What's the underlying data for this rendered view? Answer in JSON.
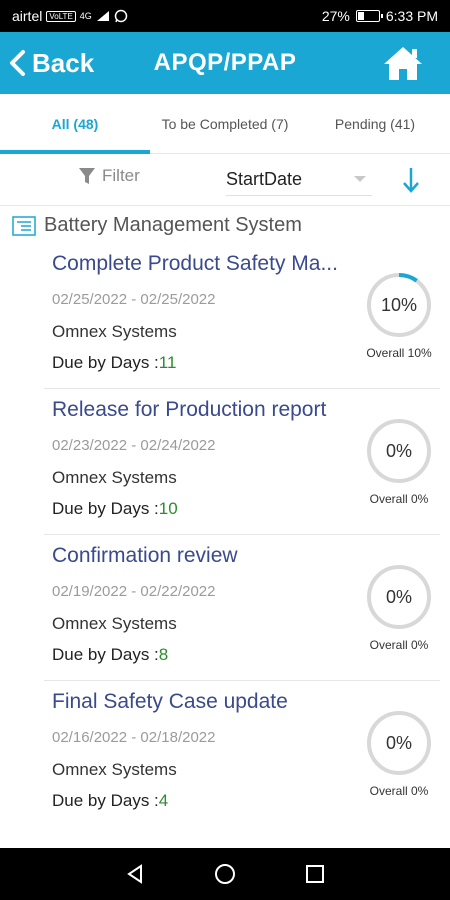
{
  "status_bar": {
    "carrier": "airtel",
    "network_tag": "VoLTE",
    "signal": "4G",
    "battery_text": "27%",
    "time": "6:33 PM"
  },
  "header": {
    "back_label": "Back",
    "title": "APQP/PPAP",
    "home_icon": "home-icon",
    "color": "#1aa7d3"
  },
  "tabs": [
    {
      "label": "All (48)",
      "active": true
    },
    {
      "label": "To be Completed (7)",
      "active": false
    },
    {
      "label": "Pending (41)",
      "active": false
    }
  ],
  "filter": {
    "label": "Filter",
    "sort_value": "StartDate",
    "sort_direction": "descending"
  },
  "section": {
    "title": "Battery Management System"
  },
  "tasks": [
    {
      "title": "Complete Product Safety Ma...",
      "dates": "02/25/2022 - 02/25/2022",
      "company": "Omnex Systems",
      "due_label": "Due by Days :",
      "due_days": "11",
      "percent_text": "10%",
      "progress": 0.1,
      "overall_text": "Overall 10%"
    },
    {
      "title": "Release for Production report",
      "dates": "02/23/2022 - 02/24/2022",
      "company": "Omnex Systems",
      "due_label": "Due by Days :",
      "due_days": "10",
      "percent_text": "0%",
      "progress": 0,
      "overall_text": "Overall 0%"
    },
    {
      "title": "Confirmation review",
      "dates": "02/19/2022 - 02/22/2022",
      "company": "Omnex Systems",
      "due_label": "Due by Days :",
      "due_days": "8",
      "percent_text": "0%",
      "progress": 0,
      "overall_text": "Overall 0%"
    },
    {
      "title": "Final Safety Case update",
      "dates": "02/16/2022 - 02/18/2022",
      "company": "Omnex Systems",
      "due_label": "Due by Days :",
      "due_days": "4",
      "percent_text": "0%",
      "progress": 0,
      "overall_text": "Overall 0%"
    }
  ],
  "nav_bar": {
    "icons": [
      "back-triangle-icon",
      "home-circle-icon",
      "recents-square-icon"
    ]
  }
}
